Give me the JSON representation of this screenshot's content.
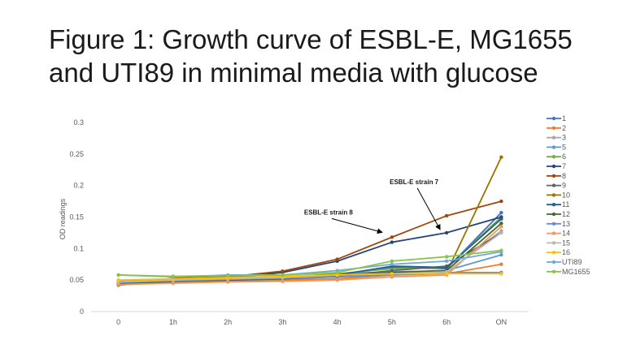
{
  "title_lines": [
    "Figure 1: Growth curve of ESBL-E, MG1655",
    "and UTI89 in minimal media with glucose"
  ],
  "chart_data": {
    "type": "line",
    "categories": [
      "0",
      "1h",
      "2h",
      "3h",
      "4h",
      "5h",
      "6h",
      "ON"
    ],
    "ylabel": "OD readings",
    "xlabel": "",
    "ylim": [
      0,
      0.3
    ],
    "yticks": [
      "0",
      "0.05",
      "0.1",
      "0.15",
      "0.2",
      "0.25",
      "0.3"
    ],
    "grid": false,
    "legend": "right",
    "annotations": [
      {
        "text": "ESBL-E strain 7",
        "series": "7",
        "point_index": 6
      },
      {
        "text": "ESBL-E strain 8",
        "series": "8",
        "point_index": 5
      }
    ],
    "series": [
      {
        "name": "1",
        "color": "#4472C4",
        "values": [
          0.045,
          0.05,
          0.052,
          0.055,
          0.058,
          0.07,
          0.068,
          0.157
        ]
      },
      {
        "name": "2",
        "color": "#ED7D31",
        "values": [
          0.043,
          0.046,
          0.048,
          0.05,
          0.052,
          0.058,
          0.06,
          0.075
        ]
      },
      {
        "name": "3",
        "color": "#A5A5A5",
        "values": [
          0.046,
          0.048,
          0.05,
          0.052,
          0.055,
          0.06,
          0.062,
          0.128
        ]
      },
      {
        "name": "5",
        "color": "#5B9BD5",
        "values": [
          0.048,
          0.05,
          0.052,
          0.054,
          0.06,
          0.063,
          0.065,
          0.09
        ]
      },
      {
        "name": "6",
        "color": "#70AD47",
        "values": [
          0.045,
          0.05,
          0.053,
          0.055,
          0.06,
          0.068,
          0.07,
          0.15
        ]
      },
      {
        "name": "7",
        "color": "#264478",
        "values": [
          0.042,
          0.052,
          0.053,
          0.062,
          0.08,
          0.11,
          0.125,
          0.15
        ]
      },
      {
        "name": "8",
        "color": "#9E480E",
        "values": [
          0.043,
          0.053,
          0.055,
          0.064,
          0.083,
          0.118,
          0.152,
          0.175
        ]
      },
      {
        "name": "9",
        "color": "#636363",
        "values": [
          0.045,
          0.049,
          0.051,
          0.053,
          0.056,
          0.065,
          0.072,
          0.125
        ]
      },
      {
        "name": "10",
        "color": "#997300",
        "values": [
          0.042,
          0.048,
          0.05,
          0.052,
          0.055,
          0.06,
          0.062,
          0.245
        ]
      },
      {
        "name": "11",
        "color": "#255E91",
        "values": [
          0.044,
          0.05,
          0.052,
          0.054,
          0.058,
          0.072,
          0.07,
          0.147
        ]
      },
      {
        "name": "12",
        "color": "#43682B",
        "values": [
          0.044,
          0.048,
          0.05,
          0.052,
          0.056,
          0.062,
          0.065,
          0.14
        ]
      },
      {
        "name": "13",
        "color": "#698ED0",
        "values": [
          0.046,
          0.049,
          0.051,
          0.053,
          0.055,
          0.058,
          0.062,
          0.062
        ]
      },
      {
        "name": "14",
        "color": "#F1975A",
        "values": [
          0.043,
          0.045,
          0.047,
          0.048,
          0.05,
          0.055,
          0.058,
          0.135
        ]
      },
      {
        "name": "15",
        "color": "#B7B7B7",
        "values": [
          0.047,
          0.05,
          0.052,
          0.054,
          0.058,
          0.06,
          0.063,
          0.125
        ]
      },
      {
        "name": "16",
        "color": "#FFC000",
        "values": [
          0.05,
          0.052,
          0.054,
          0.056,
          0.058,
          0.06,
          0.06,
          0.06
        ]
      },
      {
        "name": "UTI89",
        "color": "#6FA8DC",
        "values": [
          0.058,
          0.055,
          0.058,
          0.058,
          0.065,
          0.075,
          0.08,
          0.095
        ]
      },
      {
        "name": "MG1655",
        "color": "#8BC34A",
        "values": [
          0.058,
          0.056,
          0.057,
          0.058,
          0.062,
          0.08,
          0.087,
          0.097
        ]
      }
    ]
  }
}
